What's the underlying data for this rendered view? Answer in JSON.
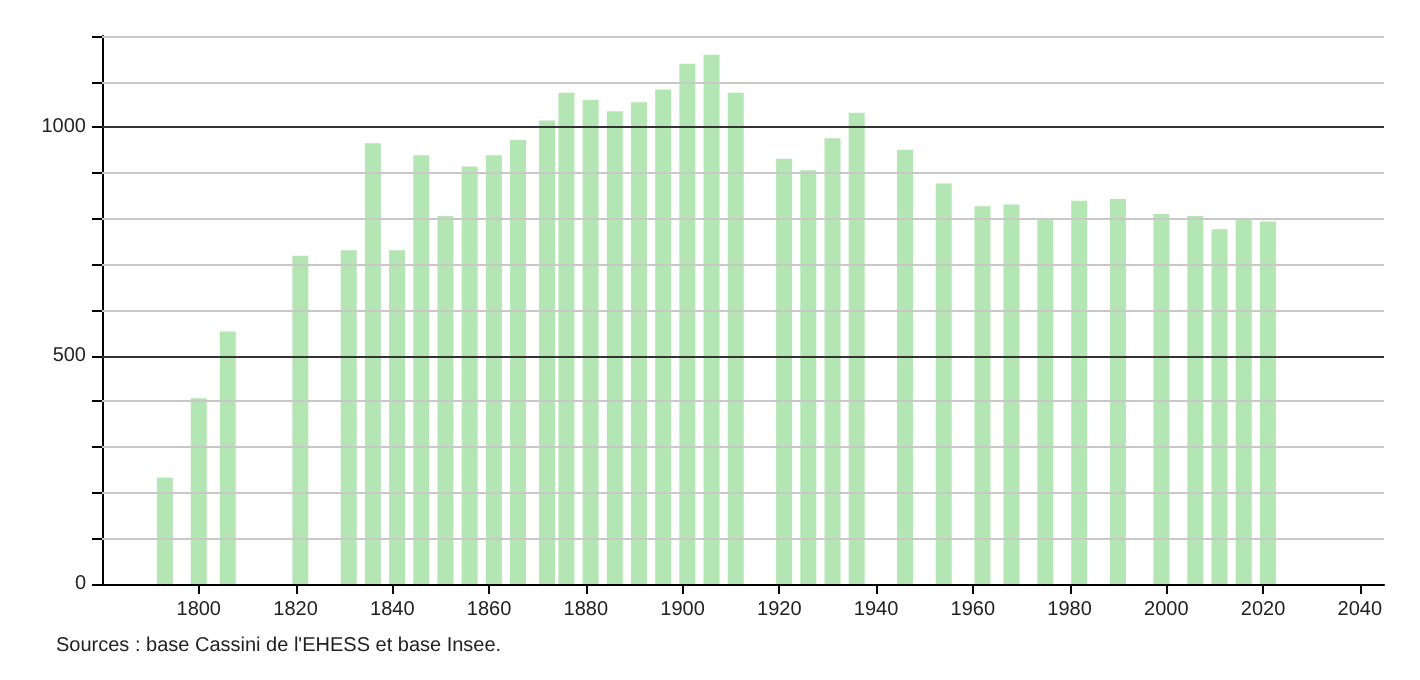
{
  "chart_data": {
    "type": "bar",
    "x": [
      1793,
      1800,
      1806,
      1821,
      1831,
      1836,
      1841,
      1846,
      1851,
      1856,
      1861,
      1866,
      1872,
      1876,
      1881,
      1886,
      1891,
      1896,
      1901,
      1906,
      1911,
      1921,
      1926,
      1931,
      1936,
      1946,
      1954,
      1962,
      1968,
      1975,
      1982,
      1990,
      1999,
      2006,
      2011,
      2016,
      2021
    ],
    "values": [
      233,
      407,
      553,
      719,
      731,
      965,
      731,
      939,
      806,
      914,
      939,
      972,
      1015,
      1076,
      1060,
      1035,
      1055,
      1083,
      1139,
      1159,
      1076,
      931,
      906,
      976,
      1032,
      951,
      877,
      827,
      831,
      801,
      839,
      843,
      810,
      806,
      777,
      801,
      794
    ],
    "color": "#b3e6b3",
    "xlim": [
      1780,
      2045
    ],
    "xticks": [
      1800,
      1820,
      1840,
      1860,
      1880,
      1900,
      1920,
      1940,
      1960,
      1980,
      2000,
      2020,
      2040
    ],
    "ylim": [
      0,
      1200
    ],
    "yticks": [
      0,
      {
        "value": 100,
        "label": null
      },
      {
        "value": 200,
        "label": null
      },
      {
        "value": 300,
        "label": null
      },
      {
        "value": 400,
        "label": null
      },
      500,
      {
        "value": 600,
        "label": null
      },
      {
        "value": 700,
        "label": null
      },
      {
        "value": 800,
        "label": null
      },
      {
        "value": 900,
        "label": null
      },
      1000,
      {
        "value": 1100,
        "label": null
      },
      {
        "value": 1200,
        "label": null
      }
    ],
    "grid": "y",
    "annotations": [
      "Sources : base Cassini de l'EHESS et base Insee."
    ]
  }
}
